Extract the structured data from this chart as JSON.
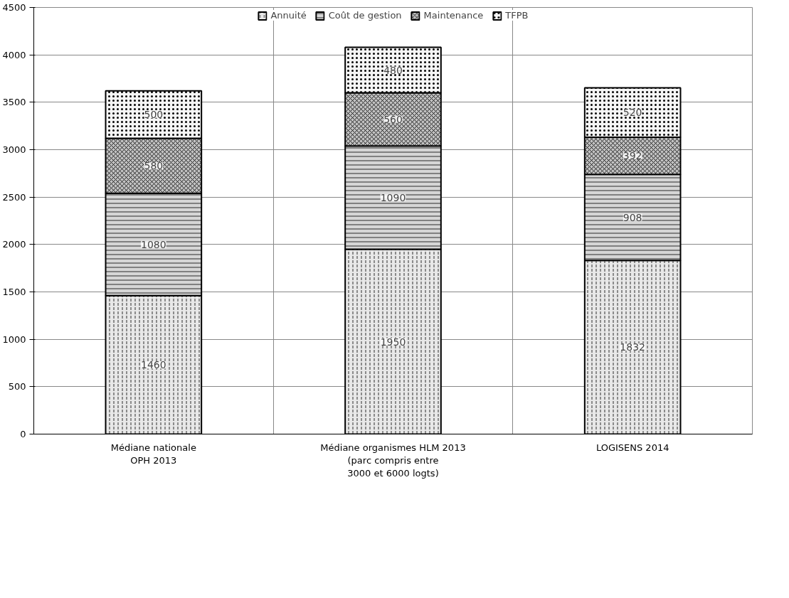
{
  "chart_data": {
    "type": "bar",
    "stacked": true,
    "categories": [
      "Médiane nationale\nOPH 2013",
      "Médiane organismes HLM 2013\n(parc compris entre\n3000 et 6000 logts)",
      "LOGISENS 2014"
    ],
    "series": [
      {
        "name": "Annuité",
        "color": "#e8e8e8",
        "values": [
          1460,
          1950,
          1832
        ]
      },
      {
        "name": "Coût de gestion",
        "color": "#d6d6d6",
        "values": [
          1080,
          1090,
          908
        ]
      },
      {
        "name": "Maintenance",
        "color": "#c0c0c0",
        "values": [
          580,
          560,
          392
        ]
      },
      {
        "name": "TFPB",
        "color": "#f6f6f6",
        "values": [
          500,
          480,
          520
        ]
      }
    ],
    "ylim": [
      0,
      4500
    ],
    "yticks": [
      0,
      500,
      1000,
      1500,
      2000,
      2500,
      3000,
      3500,
      4000,
      4500
    ],
    "grid": true,
    "legend": "top",
    "data_labels": true
  }
}
